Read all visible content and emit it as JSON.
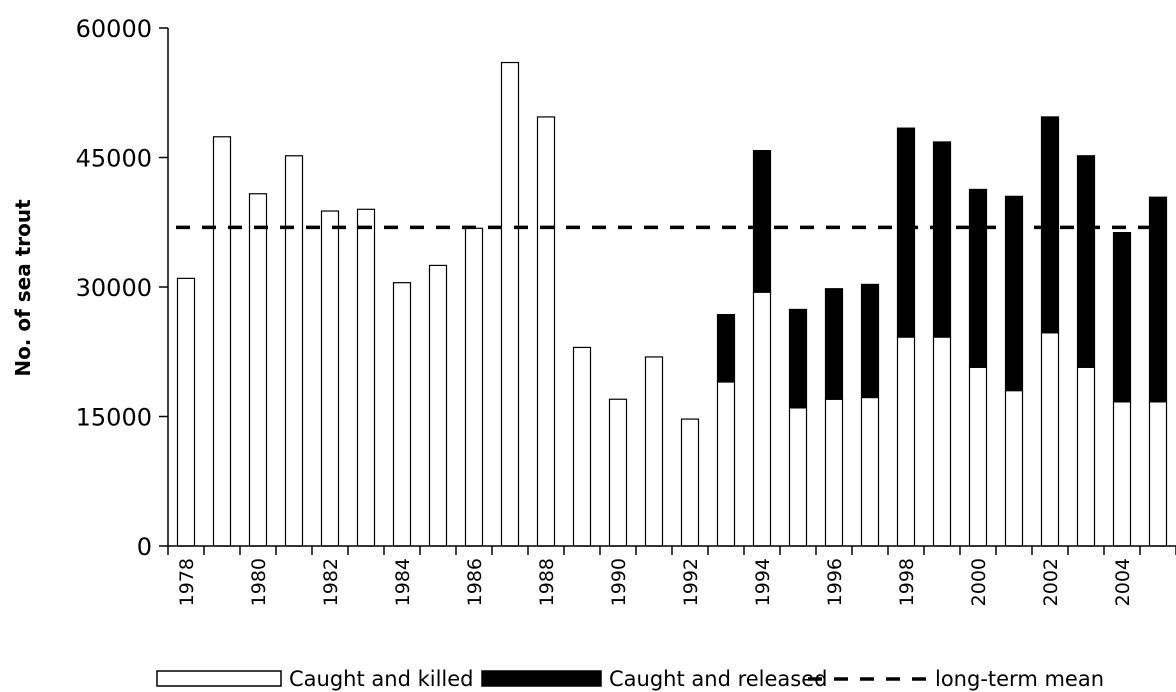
{
  "chart_data": {
    "type": "bar",
    "stacked": true,
    "ylabel": "No. of sea trout",
    "xlabel": "",
    "ylim": [
      0,
      60000
    ],
    "yticks": [
      0,
      15000,
      30000,
      45000,
      60000
    ],
    "categories": [
      "1978",
      "1979",
      "1980",
      "1981",
      "1982",
      "1983",
      "1984",
      "1985",
      "1986",
      "1987",
      "1988",
      "1989",
      "1990",
      "1991",
      "1992",
      "1993",
      "1994",
      "1995",
      "1996",
      "1997",
      "1998",
      "1999",
      "2000",
      "2001",
      "2002",
      "2003",
      "2004",
      "2005"
    ],
    "xtick_labels": [
      "1978",
      "1980",
      "1982",
      "1984",
      "1986",
      "1988",
      "1990",
      "1992",
      "1994",
      "1996",
      "1998",
      "2000",
      "2002",
      "2004"
    ],
    "series": [
      {
        "name": "Caught and killed",
        "color": "#ffffff",
        "values": [
          31000,
          47400,
          40800,
          45200,
          38800,
          39000,
          30500,
          32500,
          36800,
          56000,
          49700,
          23000,
          17000,
          21900,
          14700,
          19000,
          29400,
          16000,
          17000,
          17200,
          24200,
          24200,
          20700,
          18000,
          24700,
          20700,
          16700,
          16700
        ]
      },
      {
        "name": "Caught and released",
        "color": "#000000",
        "values": [
          0,
          0,
          0,
          0,
          0,
          0,
          0,
          0,
          0,
          0,
          0,
          0,
          0,
          0,
          0,
          7800,
          16400,
          11400,
          12800,
          13100,
          24200,
          22600,
          20600,
          22500,
          25000,
          24500,
          19600,
          23700
        ]
      }
    ],
    "reference_line": {
      "name": "long-term mean",
      "value": 36900,
      "style": "dashed"
    },
    "legend": {
      "position": "bottom",
      "items": [
        "Caught and killed",
        "Caught and released",
        "long-term mean"
      ]
    }
  }
}
